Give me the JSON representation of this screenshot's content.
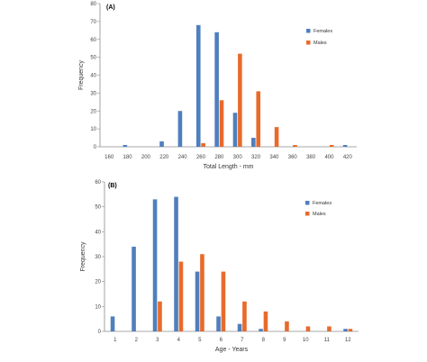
{
  "chart_data": [
    {
      "type": "bar",
      "panel_label": "(A)",
      "xlabel": "Total Length - mm",
      "ylabel": "Frequency",
      "ylim": [
        0,
        80
      ],
      "yticks": [
        0,
        10,
        20,
        30,
        40,
        50,
        60,
        70,
        80
      ],
      "categories": [
        "160",
        "180",
        "200",
        "220",
        "240",
        "260",
        "280",
        "300",
        "320",
        "340",
        "360",
        "380",
        "400",
        "420"
      ],
      "legend_position": "top-right",
      "series": [
        {
          "name": "Females",
          "color": "#4f7fbd",
          "values": [
            0,
            1,
            0,
            3,
            20,
            68,
            64,
            19,
            5,
            0,
            0,
            0,
            0,
            1
          ]
        },
        {
          "name": "Males",
          "color": "#e86a2b",
          "values": [
            0,
            0,
            0,
            0,
            0,
            2,
            26,
            52,
            31,
            11,
            1,
            0,
            1,
            0
          ]
        }
      ]
    },
    {
      "type": "bar",
      "panel_label": "(B)",
      "xlabel": "Age - Years",
      "ylabel": "Frequency",
      "ylim": [
        0,
        60
      ],
      "yticks": [
        0,
        10,
        20,
        30,
        40,
        50,
        60
      ],
      "categories": [
        "1",
        "2",
        "3",
        "4",
        "5",
        "6",
        "7",
        "8",
        "9",
        "10",
        "11",
        "12"
      ],
      "legend_position": "top-right",
      "series": [
        {
          "name": "Females",
          "color": "#4f7fbd",
          "values": [
            6,
            34,
            53,
            54,
            24,
            6,
            3,
            1,
            0,
            0,
            0,
            1
          ]
        },
        {
          "name": "Males",
          "color": "#e86a2b",
          "values": [
            0,
            0,
            12,
            28,
            31,
            24,
            12,
            8,
            4,
            2,
            2,
            1
          ]
        }
      ]
    }
  ]
}
